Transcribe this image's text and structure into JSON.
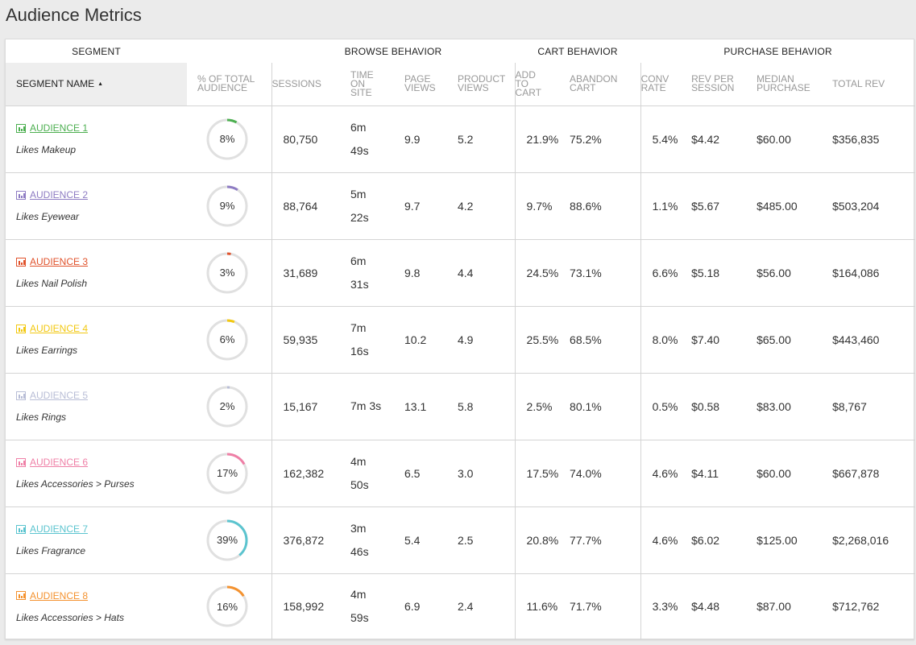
{
  "title": "Audience Metrics",
  "groups": {
    "segment": "SEGMENT",
    "browse": "BROWSE BEHAVIOR",
    "cart": "CART BEHAVIOR",
    "purchase": "PURCHASE BEHAVIOR"
  },
  "columns": {
    "segment_name": "SEGMENT NAME",
    "pct_total_audience": [
      "% OF TOTAL",
      "AUDIENCE"
    ],
    "sessions": [
      "SESSIONS"
    ],
    "time_on_site": [
      "TIME",
      "ON",
      "SITE"
    ],
    "page_views": [
      "PAGE",
      "VIEWS"
    ],
    "product_views": [
      "PRODUCT",
      "VIEWS"
    ],
    "add_to_cart": [
      "ADD",
      "TO",
      "CART"
    ],
    "abandon_cart": [
      "ABANDON",
      "CART"
    ],
    "conv_rate": [
      "CONV",
      "RATE"
    ],
    "rev_per_session": [
      "REV PER",
      "SESSION"
    ],
    "median_purchase": [
      "MEDIAN",
      "PURCHASE"
    ],
    "total_rev": [
      "TOTAL REV"
    ]
  },
  "icons": {
    "segment": "bar-chart-icon",
    "sort": "sort-ascending-caret-icon"
  },
  "colors": {
    "ring_track": "#e0e0e0",
    "header_bg": "#eeeeee"
  },
  "rows": [
    {
      "name": "AUDIENCE 1",
      "description": "Likes Makeup",
      "color": "#4caf50",
      "pct_label": "8%",
      "pct": 8,
      "sessions": "80,750",
      "time_on_site": [
        "6m",
        "49s"
      ],
      "page_views": "9.9",
      "product_views": "5.2",
      "add_to_cart": "21.9%",
      "abandon_cart": "75.2%",
      "conv_rate": "5.4%",
      "rev_per_session": "$4.42",
      "median_purchase": "$60.00",
      "total_rev": "$356,835"
    },
    {
      "name": "AUDIENCE 2",
      "description": "Likes Eyewear",
      "color": "#8e7cc3",
      "pct_label": "9%",
      "pct": 9,
      "sessions": "88,764",
      "time_on_site": [
        "5m",
        "22s"
      ],
      "page_views": "9.7",
      "product_views": "4.2",
      "add_to_cart": "9.7%",
      "abandon_cart": "88.6%",
      "conv_rate": "1.1%",
      "rev_per_session": "$5.67",
      "median_purchase": "$485.00",
      "total_rev": "$503,204"
    },
    {
      "name": "AUDIENCE 3",
      "description": "Likes Nail Polish",
      "color": "#e0522b",
      "pct_label": "3%",
      "pct": 3,
      "sessions": "31,689",
      "time_on_site": [
        "6m",
        "31s"
      ],
      "page_views": "9.8",
      "product_views": "4.4",
      "add_to_cart": "24.5%",
      "abandon_cart": "73.1%",
      "conv_rate": "6.6%",
      "rev_per_session": "$5.18",
      "median_purchase": "$56.00",
      "total_rev": "$164,086"
    },
    {
      "name": "AUDIENCE 4",
      "description": "Likes Earrings",
      "color": "#f2c811",
      "pct_label": "6%",
      "pct": 6,
      "sessions": "59,935",
      "time_on_site": [
        "7m",
        "16s"
      ],
      "page_views": "10.2",
      "product_views": "4.9",
      "add_to_cart": "25.5%",
      "abandon_cart": "68.5%",
      "conv_rate": "8.0%",
      "rev_per_session": "$7.40",
      "median_purchase": "$65.00",
      "total_rev": "$443,460"
    },
    {
      "name": "AUDIENCE 5",
      "description": "Likes Rings",
      "color": "#b8bdd6",
      "pct_label": "2%",
      "pct": 2,
      "sessions": "15,167",
      "time_on_site": [
        "7m 3s"
      ],
      "page_views": "13.1",
      "product_views": "5.8",
      "add_to_cart": "2.5%",
      "abandon_cart": "80.1%",
      "conv_rate": "0.5%",
      "rev_per_session": "$0.58",
      "median_purchase": "$83.00",
      "total_rev": "$8,767"
    },
    {
      "name": "AUDIENCE 6",
      "description": "Likes Accessories > Purses",
      "color": "#ef7fa6",
      "pct_label": "17%",
      "pct": 17,
      "sessions": "162,382",
      "time_on_site": [
        "4m",
        "50s"
      ],
      "page_views": "6.5",
      "product_views": "3.0",
      "add_to_cart": "17.5%",
      "abandon_cart": "74.0%",
      "conv_rate": "4.6%",
      "rev_per_session": "$4.11",
      "median_purchase": "$60.00",
      "total_rev": "$667,878"
    },
    {
      "name": "AUDIENCE 7",
      "description": "Likes Fragrance",
      "color": "#5bc4cf",
      "pct_label": "39%",
      "pct": 39,
      "sessions": "376,872",
      "time_on_site": [
        "3m",
        "46s"
      ],
      "page_views": "5.4",
      "product_views": "2.5",
      "add_to_cart": "20.8%",
      "abandon_cart": "77.7%",
      "conv_rate": "4.6%",
      "rev_per_session": "$6.02",
      "median_purchase": "$125.00",
      "total_rev": "$2,268,016"
    },
    {
      "name": "AUDIENCE 8",
      "description": "Likes Accessories > Hats",
      "color": "#f4922f",
      "pct_label": "16%",
      "pct": 16,
      "sessions": "158,992",
      "time_on_site": [
        "4m",
        "59s"
      ],
      "page_views": "6.9",
      "product_views": "2.4",
      "add_to_cart": "11.6%",
      "abandon_cart": "71.7%",
      "conv_rate": "3.3%",
      "rev_per_session": "$4.48",
      "median_purchase": "$87.00",
      "total_rev": "$712,762"
    }
  ]
}
